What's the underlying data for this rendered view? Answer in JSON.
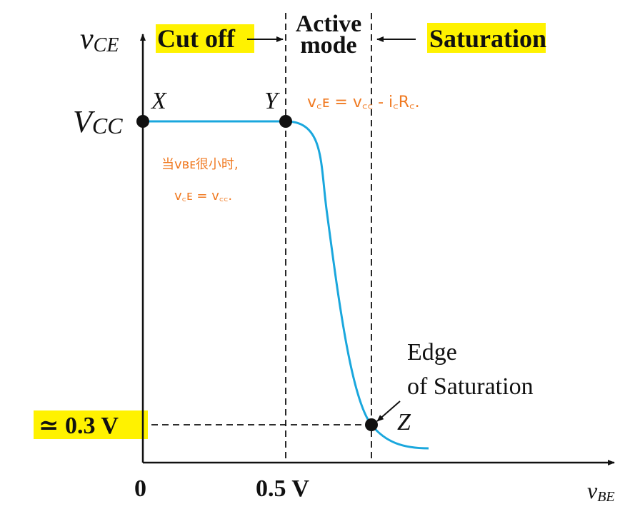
{
  "axes": {
    "y_label_main": "v",
    "y_label_sub": "CE",
    "x_label_main": "v",
    "x_label_sub": "BE",
    "origin_label": "0",
    "x_tick_label": "0.5 V",
    "vcc_main": "V",
    "vcc_sub": "CC",
    "low_v_label": "≃ 0.3 V"
  },
  "regions": {
    "cutoff": "Cut off",
    "active_line1": "Active",
    "active_line2": "mode",
    "saturation": "Saturation"
  },
  "points": {
    "x": "X",
    "y": "Y",
    "z": "Z"
  },
  "edge_label": {
    "line1": "Edge",
    "line2": "of Saturation"
  },
  "annotations": {
    "formula": "v꜀ᴇ = v꜀꜀ - i꜀R꜀.",
    "note_line1": "当vʙᴇ很小时,",
    "note_line2": "v꜀ᴇ = v꜀꜀."
  },
  "colors": {
    "curve": "#1aa7dd",
    "highlight": "#fff200",
    "handwriting": "#f07a22",
    "ink": "#111111"
  }
}
